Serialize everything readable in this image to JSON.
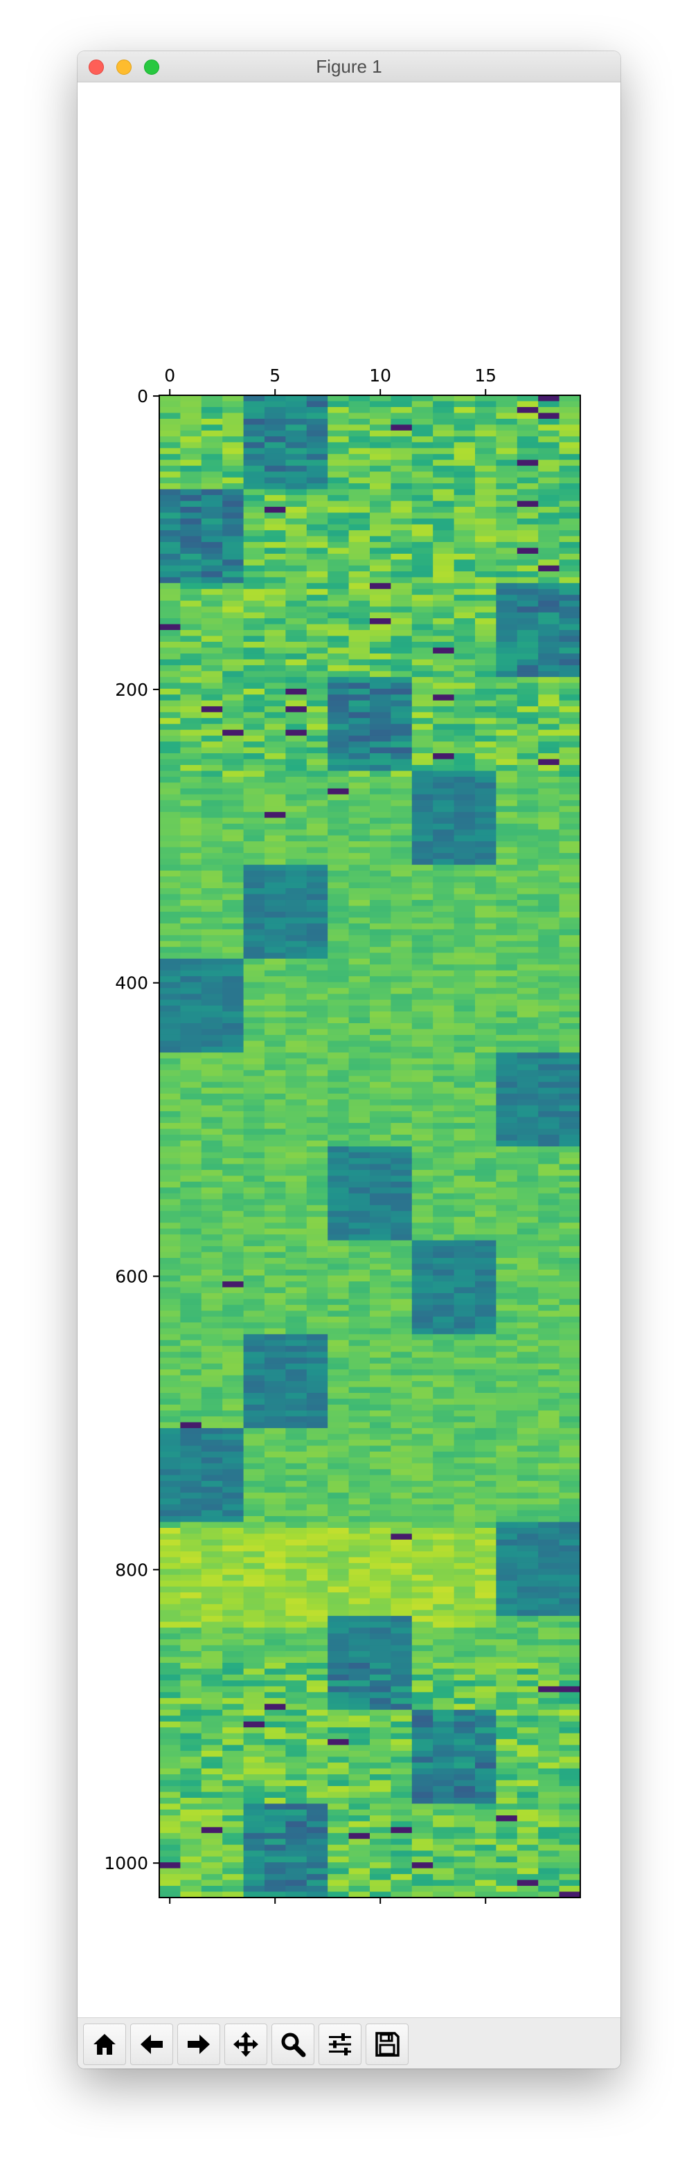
{
  "window": {
    "title": "Figure 1"
  },
  "toolbar": {
    "buttons": [
      {
        "name": "home-button",
        "icon": "home-icon"
      },
      {
        "name": "back-button",
        "icon": "arrow-left-icon"
      },
      {
        "name": "forward-button",
        "icon": "arrow-right-icon"
      },
      {
        "name": "pan-button",
        "icon": "move-icon"
      },
      {
        "name": "zoom-button",
        "icon": "magnifier-icon"
      },
      {
        "name": "configure-subplots-button",
        "icon": "sliders-icon"
      },
      {
        "name": "save-button",
        "icon": "floppy-disk-icon"
      }
    ]
  },
  "chart_data": {
    "type": "heatmap",
    "colormap": "viridis",
    "n_rows": 1024,
    "n_cols": 20,
    "x_ticks": [
      0,
      5,
      10,
      15
    ],
    "y_ticks": [
      0,
      200,
      400,
      600,
      800,
      1000
    ],
    "x_tick_labels": [
      "0",
      "5",
      "10",
      "15"
    ],
    "y_tick_labels": [
      "0",
      "200",
      "400",
      "600",
      "800",
      "1000"
    ],
    "xlim": [
      -0.5,
      19.5
    ],
    "ylim": [
      1023.5,
      -0.5
    ],
    "x_axis_position": "top",
    "grid": false,
    "legend": "none",
    "value_level_approx": {
      "background": 0.75,
      "block": 0.45
    },
    "blocks": [
      {
        "rows": [
          0,
          64
        ],
        "cols": [
          4,
          7
        ]
      },
      {
        "rows": [
          64,
          128
        ],
        "cols": [
          0,
          3
        ]
      },
      {
        "rows": [
          128,
          192
        ],
        "cols": [
          16,
          19
        ]
      },
      {
        "rows": [
          192,
          256
        ],
        "cols": [
          8,
          11
        ]
      },
      {
        "rows": [
          256,
          320
        ],
        "cols": [
          12,
          15
        ]
      },
      {
        "rows": [
          320,
          384
        ],
        "cols": [
          4,
          7
        ]
      },
      {
        "rows": [
          384,
          448
        ],
        "cols": [
          0,
          3
        ]
      },
      {
        "rows": [
          448,
          512
        ],
        "cols": [
          16,
          19
        ]
      },
      {
        "rows": [
          512,
          576
        ],
        "cols": [
          8,
          11
        ]
      },
      {
        "rows": [
          576,
          640
        ],
        "cols": [
          12,
          15
        ]
      },
      {
        "rows": [
          640,
          704
        ],
        "cols": [
          4,
          7
        ]
      },
      {
        "rows": [
          704,
          768
        ],
        "cols": [
          0,
          3
        ]
      },
      {
        "rows": [
          768,
          832
        ],
        "cols": [
          16,
          19
        ]
      },
      {
        "rows": [
          832,
          896
        ],
        "cols": [
          8,
          11
        ]
      },
      {
        "rows": [
          896,
          960
        ],
        "cols": [
          12,
          15
        ]
      },
      {
        "rows": [
          960,
          1024
        ],
        "cols": [
          4,
          7
        ]
      }
    ],
    "colors": {
      "background": "#8fd656",
      "block": "#26a08d",
      "dark_line": "#46226e",
      "bright": "#c9e12a"
    }
  }
}
